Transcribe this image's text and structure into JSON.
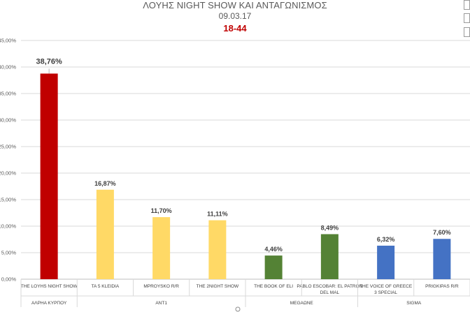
{
  "chart_data": {
    "type": "bar",
    "title": "ΛΟΥΗΣ NIGHT SHOW ΚΑΙ ΑΝΤΑΓΩΝΙΣΜΟΣ",
    "subtitle": "09.03.17",
    "subtitle2": "18-44",
    "categories": [
      "THE LOYHS NIGHT SHOW",
      "TA 5 KLEIDIA",
      "MPROYSKO R/R",
      "THE 2NIGHT SHOW",
      "THE BOOK OF ELI",
      "PABLO ESCOBAR: EL PATRON DEL MAL",
      "THE VOICE OF GREECE 3 SPECIAL",
      "PRIGKIPAS R/R"
    ],
    "values": [
      38.76,
      16.87,
      11.7,
      11.11,
      4.46,
      8.49,
      6.32,
      7.6
    ],
    "value_labels": [
      "38,76%",
      "16,87%",
      "11,70%",
      "11,11%",
      "4,46%",
      "8,49%",
      "6,32%",
      "7,60%"
    ],
    "groups": [
      {
        "name": "ΑΛΡΗΑ ΚΥΡΠΟΥ",
        "count": 1
      },
      {
        "name": "ANT1",
        "count": 3
      },
      {
        "name": "MEGAΩNE",
        "count": 2
      },
      {
        "name": "SIGMA",
        "count": 2
      }
    ],
    "bar_colors": [
      "#c00000",
      "#ffd966",
      "#ffd966",
      "#ffd966",
      "#548235",
      "#548235",
      "#4472c4",
      "#4472c4"
    ],
    "y_ticks": [
      "0,00%",
      "5,00%",
      "10,00%",
      "15,00%",
      "20,00%",
      "25,00%",
      "30,00%",
      "35,00%",
      "40,00%",
      "45,00%"
    ],
    "ylim": [
      0,
      45
    ],
    "grid": true,
    "legend": "none"
  }
}
